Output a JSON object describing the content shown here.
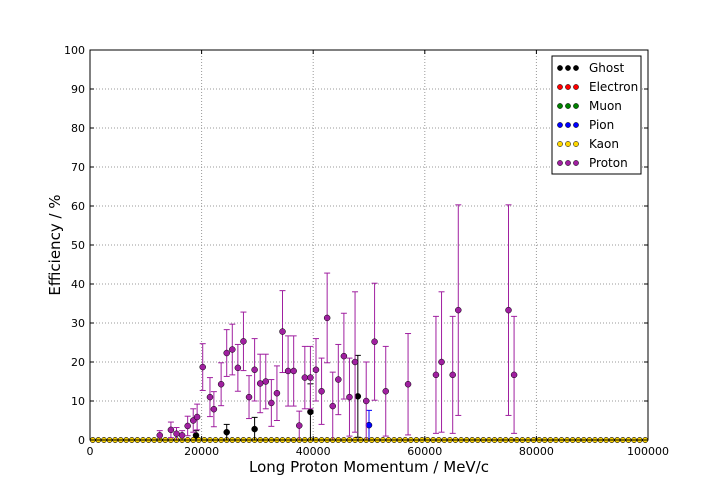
{
  "chart_data": {
    "type": "scatter",
    "title": "",
    "xlabel": "Long Proton Momentum / MeV/c",
    "ylabel": "Efficiency / %",
    "xlim": [
      0,
      100000
    ],
    "ylim": [
      0,
      100
    ],
    "x_ticks": [
      0,
      20000,
      40000,
      60000,
      80000,
      100000
    ],
    "x_tick_labels": [
      "0",
      "20000",
      "40000",
      "60000",
      "80000",
      "100000"
    ],
    "y_ticks": [
      0,
      10,
      20,
      30,
      40,
      50,
      60,
      70,
      80,
      90,
      100
    ],
    "y_tick_labels": [
      "0",
      "10",
      "20",
      "30",
      "40",
      "50",
      "60",
      "70",
      "80",
      "90",
      "100"
    ],
    "grid": true,
    "legend_position": "top-right",
    "series": [
      {
        "name": "Ghost",
        "color": "#000000",
        "x": [
          19000,
          24500,
          29500,
          39500,
          48000
        ],
        "y": [
          1.2,
          2.0,
          2.8,
          7.2,
          11.2
        ],
        "err": [
          1.2,
          2.0,
          3.0,
          7.2,
          10.5
        ]
      },
      {
        "name": "Electron",
        "color": "#ff0000",
        "x": [],
        "y": [],
        "err": []
      },
      {
        "name": "Muon",
        "color": "#008000",
        "x": [],
        "y": [],
        "err": []
      },
      {
        "name": "Pion",
        "color": "#0000ff",
        "x": [
          50000
        ],
        "y": [
          3.8
        ],
        "err": [
          3.8
        ]
      },
      {
        "name": "Kaon",
        "color": "#ffd700",
        "x": [],
        "y": [],
        "err": []
      },
      {
        "name": "Proton",
        "color": "#a020a0",
        "x": [
          12500,
          14500,
          15500,
          16500,
          17500,
          18500,
          19200,
          20200,
          21500,
          22200,
          23500,
          24500,
          25500,
          26500,
          27500,
          28500,
          29500,
          30500,
          31500,
          32500,
          33500,
          34500,
          35500,
          36500,
          37500,
          38500,
          39500,
          40500,
          41500,
          42500,
          43500,
          44500,
          45500,
          46500,
          47500,
          49500,
          51000,
          53000,
          57000,
          62000,
          63000,
          65000,
          66000,
          75000,
          76000
        ],
        "y": [
          1.2,
          2.6,
          1.6,
          1.2,
          3.6,
          5.0,
          5.9,
          18.7,
          11.0,
          7.9,
          14.3,
          22.3,
          23.2,
          18.5,
          25.3,
          11.0,
          18.0,
          14.5,
          15.0,
          9.5,
          12.0,
          27.8,
          17.7,
          17.7,
          3.7,
          16.0,
          16.0,
          18.0,
          12.5,
          31.3,
          8.7,
          15.5,
          21.5,
          11.0,
          20.0,
          10.0,
          25.2,
          12.5,
          14.3,
          16.7,
          20.0,
          16.7,
          33.3,
          33.3,
          16.7
        ],
        "err": [
          1.2,
          2.0,
          1.6,
          1.2,
          2.5,
          3.0,
          3.3,
          6.0,
          5.0,
          4.5,
          5.5,
          6.0,
          6.5,
          6.0,
          7.5,
          5.5,
          8.0,
          7.5,
          7.0,
          6.0,
          7.0,
          10.5,
          9.0,
          9.0,
          3.7,
          8.0,
          8.0,
          8.0,
          8.5,
          11.5,
          8.7,
          9.0,
          11.0,
          10.0,
          18.0,
          10.0,
          15.0,
          11.5,
          13.0,
          15.0,
          18.0,
          15.0,
          27.0,
          27.0,
          15.0
        ]
      }
    ]
  }
}
